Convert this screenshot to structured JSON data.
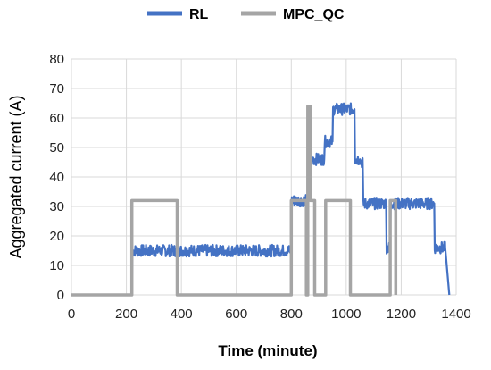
{
  "chart_data": {
    "type": "line",
    "xlabel": "Time (minute)",
    "ylabel": "Aggregated current (A)",
    "xlim": [
      0,
      1400
    ],
    "ylim": [
      0,
      80
    ],
    "x_ticks": [
      0,
      200,
      400,
      600,
      800,
      1000,
      1200,
      1400
    ],
    "y_ticks": [
      0,
      10,
      20,
      30,
      40,
      50,
      60,
      70,
      80
    ],
    "grid": "vertical and horizontal gridlines",
    "legend_position": "top",
    "series": [
      {
        "name": "RL",
        "color": "#4472C4",
        "style": "noisy",
        "points": [
          [
            0,
            0
          ],
          [
            220,
            0
          ],
          [
            222,
            15
          ],
          [
            800,
            15
          ],
          [
            802,
            32
          ],
          [
            860,
            32
          ],
          [
            862,
            46
          ],
          [
            920,
            46
          ],
          [
            922,
            52
          ],
          [
            950,
            52
          ],
          [
            952,
            63
          ],
          [
            1030,
            63
          ],
          [
            1032,
            46
          ],
          [
            1050,
            46
          ],
          [
            1052,
            45
          ],
          [
            1060,
            45
          ],
          [
            1062,
            31
          ],
          [
            1145,
            31
          ],
          [
            1147,
            16
          ],
          [
            1160,
            16
          ],
          [
            1162,
            31
          ],
          [
            1320,
            31
          ],
          [
            1322,
            16
          ],
          [
            1360,
            16
          ],
          [
            1375,
            0
          ]
        ]
      },
      {
        "name": "MPC_QC",
        "color": "#A5A5A5",
        "style": "step",
        "points": [
          [
            0,
            0
          ],
          [
            220,
            0
          ],
          [
            220,
            32
          ],
          [
            385,
            32
          ],
          [
            385,
            0
          ],
          [
            800,
            0
          ],
          [
            800,
            32
          ],
          [
            855,
            32
          ],
          [
            855,
            0
          ],
          [
            860,
            0
          ],
          [
            860,
            64
          ],
          [
            870,
            64
          ],
          [
            870,
            32
          ],
          [
            885,
            32
          ],
          [
            885,
            0
          ],
          [
            925,
            0
          ],
          [
            925,
            32
          ],
          [
            1015,
            32
          ],
          [
            1015,
            0
          ],
          [
            1160,
            0
          ],
          [
            1160,
            32
          ],
          [
            1180,
            32
          ],
          [
            1180,
            0
          ]
        ]
      }
    ]
  }
}
